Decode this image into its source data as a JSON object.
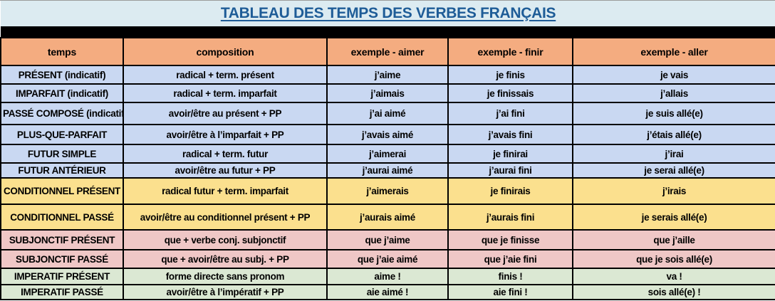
{
  "title": "TABLEAU DES TEMPS DES VERBES FRANÇAIS",
  "colors": {
    "title-bg": "#dcebf1",
    "title-text": "#1e5c97",
    "header-bg": "#f4ac80",
    "row-blue": "#c9d8f2",
    "row-yellow": "#fbe08e",
    "row-pink": "#efc7c6",
    "row-green": "#dbe8d3",
    "band": "#000000"
  },
  "table": {
    "headers": [
      "temps",
      "composition",
      "exemple - aimer",
      "exemple - finir",
      "exemple - aller"
    ],
    "rows": [
      {
        "group": "indicatif",
        "cells": [
          "PRÉSENT (indicatif)",
          "radical + term. présent",
          "j’aime",
          "je finis",
          "je vais"
        ]
      },
      {
        "group": "indicatif",
        "cells": [
          "IMPARFAIT (indicatif)",
          "radical + term. imparfait",
          "j’aimais",
          "je finissais",
          "j’allais"
        ]
      },
      {
        "group": "indicatif",
        "cells": [
          "PASSÉ COMPOSÉ (indicatif)",
          "avoir/être au présent + PP",
          "j’ai aimé",
          "j’ai fini",
          "je suis allé(e)"
        ]
      },
      {
        "group": "indicatif",
        "cells": [
          "PLUS-QUE-PARFAIT",
          "avoir/être à l’imparfait + PP",
          "j’avais aimé",
          "j’avais fini",
          "j’étais allé(e)"
        ]
      },
      {
        "group": "indicatif",
        "cells": [
          "FUTUR SIMPLE",
          "radical + term. futur",
          "j’aimerai",
          "je finirai",
          "j’irai"
        ]
      },
      {
        "group": "indicatif",
        "cells": [
          "FUTUR ANTÉRIEUR",
          "avoir/être au futur + PP",
          "j’aurai aimé",
          "j’aurai fini",
          "je serai allé(e)"
        ]
      },
      {
        "group": "conditionnel",
        "cells": [
          "CONDITIONNEL PRÉSENT",
          "radical futur + term. imparfait",
          "j’aimerais",
          "je finirais",
          "j’irais"
        ]
      },
      {
        "group": "conditionnel",
        "cells": [
          "CONDITIONNEL PASSÉ",
          "avoir/être au conditionnel présent + PP",
          "j’aurais aimé",
          "j’aurais fini",
          "je serais allé(e)"
        ]
      },
      {
        "group": "subjonctif",
        "cells": [
          "SUBJONCTIF PRÉSENT",
          "que + verbe conj. subjonctif",
          "que j’aime",
          "que je finisse",
          "que j’aille"
        ]
      },
      {
        "group": "subjonctif",
        "cells": [
          "SUBJONCTIF PASSÉ",
          "que + avoir/être au subj. + PP",
          "que j’aie aimé",
          "que j’aie fini",
          "que je sois allé(e)"
        ]
      },
      {
        "group": "imperatif",
        "cells": [
          "IMPERATIF PRÉSENT",
          "forme directe sans pronom",
          "aime !",
          "finis !",
          "va !"
        ]
      },
      {
        "group": "imperatif",
        "cells": [
          "IMPERATIF PASSÉ",
          "avoir/être à l’impératif + PP",
          "aie aimé !",
          "aie fini !",
          "sois allé(e) !"
        ]
      }
    ]
  }
}
